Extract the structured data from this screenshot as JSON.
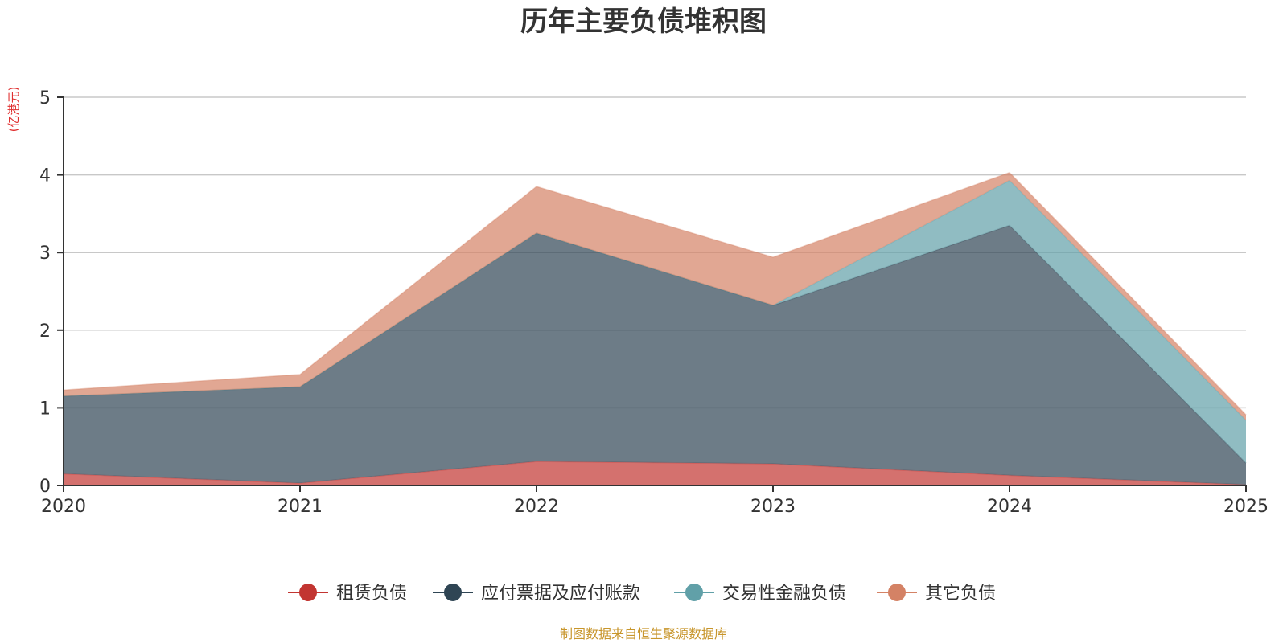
{
  "chart_data": {
    "type": "area",
    "stacked": true,
    "title": "历年主要负债堆积图",
    "unit_label": "(亿港元)",
    "x": [
      "2020",
      "2021",
      "2022",
      "2023",
      "2024",
      "2025"
    ],
    "ylim": [
      0,
      5
    ],
    "yticks": [
      "0",
      "1",
      "2",
      "3",
      "4",
      "5"
    ],
    "grid": true,
    "legend_position": "bottom",
    "series": [
      {
        "name": "租赁负债",
        "color": "#c23531",
        "values": [
          0.15,
          0.03,
          0.31,
          0.28,
          0.13,
          0.01
        ]
      },
      {
        "name": "应付票据及应付账款",
        "color": "#2f4554",
        "values": [
          1.0,
          1.24,
          2.94,
          2.04,
          3.22,
          0.28
        ]
      },
      {
        "name": "交易性金融负债",
        "color": "#61a0a8",
        "values": [
          0.0,
          0.0,
          0.0,
          0.0,
          0.58,
          0.55
        ]
      },
      {
        "name": "其它负债",
        "color": "#d48265",
        "values": [
          0.08,
          0.16,
          0.6,
          0.62,
          0.1,
          0.07
        ]
      }
    ],
    "source": "制图数据来自恒生聚源数据库"
  }
}
